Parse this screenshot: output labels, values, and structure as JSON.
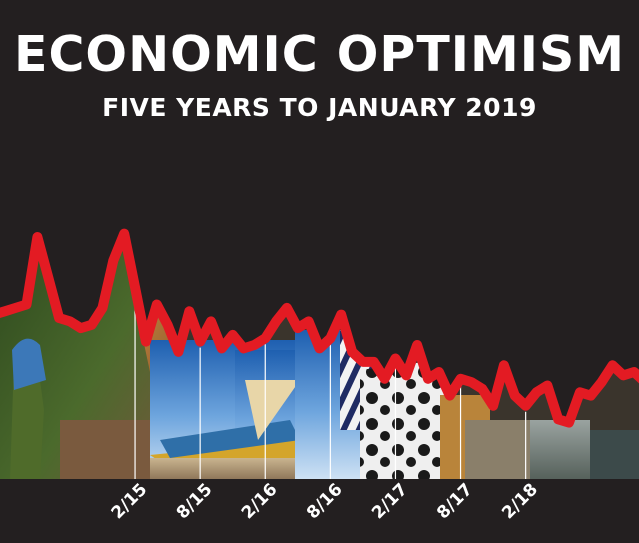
{
  "chart_data": {
    "type": "line",
    "title": "ECONOMIC OPTIMISM",
    "subtitle": "FIVE YEARS TO JANUARY 2019",
    "xlabel": "",
    "ylabel": "",
    "x_tick_labels": [
      "2/15",
      "8/15",
      "2/16",
      "8/16",
      "2/17",
      "8/17",
      "2/18"
    ],
    "x": [
      "2014-01",
      "2014-02",
      "2014-03",
      "2014-04",
      "2014-05",
      "2014-06",
      "2014-07",
      "2014-08",
      "2014-09",
      "2014-10",
      "2014-11",
      "2014-12",
      "2015-01",
      "2015-02",
      "2015-03",
      "2015-04",
      "2015-05",
      "2015-06",
      "2015-07",
      "2015-08",
      "2015-09",
      "2015-10",
      "2015-11",
      "2015-12",
      "2016-01",
      "2016-02",
      "2016-03",
      "2016-04",
      "2016-05",
      "2016-06",
      "2016-07",
      "2016-08",
      "2016-09",
      "2016-10",
      "2016-11",
      "2016-12",
      "2017-01",
      "2017-02",
      "2017-03",
      "2017-04",
      "2017-05",
      "2017-06",
      "2017-07",
      "2017-08",
      "2017-09",
      "2017-10",
      "2017-11",
      "2017-12",
      "2018-01",
      "2018-02",
      "2018-03",
      "2018-04",
      "2018-05",
      "2018-06",
      "2018-07",
      "2018-08",
      "2018-09",
      "2018-10",
      "2018-11",
      "2018-12",
      "2019-01"
    ],
    "series": [
      {
        "values": [
          24,
          25,
          26,
          27,
          47,
          35,
          23,
          22,
          20,
          21,
          26,
          40,
          48,
          32,
          16,
          27,
          21,
          13,
          25,
          16,
          22,
          14,
          18,
          14,
          15,
          17,
          22,
          26,
          20,
          22,
          14,
          17,
          24,
          13,
          10,
          10,
          5,
          11,
          6,
          15,
          5,
          7,
          0,
          5,
          4,
          2,
          -3,
          9,
          0,
          -3,
          1,
          3,
          -7,
          -8,
          1,
          0,
          4,
          9,
          6,
          7,
          4
        ]
      }
    ],
    "ylim": [
      -25,
      55
    ],
    "line_color": "#e31b23",
    "background_color": "#231f20",
    "grid": "vertical lines at tick dates",
    "legend": "none"
  }
}
